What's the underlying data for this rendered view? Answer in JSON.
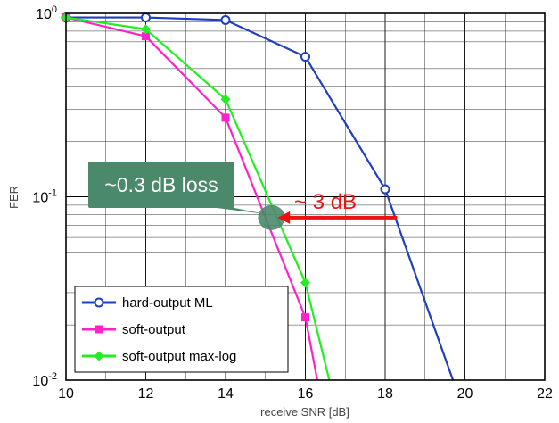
{
  "chart_data": {
    "type": "line",
    "xlabel": "receive SNR [dB]",
    "ylabel": "FER",
    "xlim": [
      10,
      22
    ],
    "ylim": [
      0.01,
      1
    ],
    "yscale": "log",
    "grid": true,
    "x_ticks": [
      "10",
      "12",
      "14",
      "16",
      "18",
      "20",
      "22"
    ],
    "y_ticks": [
      {
        "base": "10",
        "exp": "0",
        "value": 1
      },
      {
        "base": "10",
        "exp": "-1",
        "value": 0.1
      },
      {
        "base": "10",
        "exp": "-2",
        "value": 0.01
      }
    ],
    "legend_position": "bottom-left",
    "series": [
      {
        "name": "hard-output ML",
        "color": "#1f3fbf",
        "marker": "circle",
        "x": [
          10,
          12,
          14,
          16,
          18,
          19.7
        ],
        "y": [
          0.95,
          0.95,
          0.92,
          0.58,
          0.11,
          0.01
        ],
        "marker_x": [
          10,
          12,
          14,
          16,
          18
        ]
      },
      {
        "name": "soft-output",
        "color": "#ff22cc",
        "marker": "square",
        "x": [
          10,
          12,
          14,
          16,
          16.3
        ],
        "y": [
          0.95,
          0.75,
          0.27,
          0.022,
          0.01
        ],
        "marker_x": [
          10,
          12,
          14,
          16
        ]
      },
      {
        "name": "soft-output max-log",
        "color": "#22ee22",
        "marker": "diamond",
        "x": [
          10,
          12,
          14,
          16,
          16.6
        ],
        "y": [
          0.95,
          0.82,
          0.34,
          0.034,
          0.01
        ],
        "marker_x": [
          10,
          12,
          14,
          16
        ]
      }
    ],
    "annotations": [
      {
        "text": "~0.3 dB loss",
        "box_color": "#4a8a6a",
        "text_color": "#ffffff"
      },
      {
        "text": "~ 3 dB",
        "color": "#ee1111",
        "arrow_from_x": 18.3,
        "arrow_to_x": 15.3,
        "arrow_y": 0.077
      },
      {
        "type": "ellipse",
        "x": 15.15,
        "y": 0.077,
        "color": "#4a8a6a"
      }
    ]
  }
}
